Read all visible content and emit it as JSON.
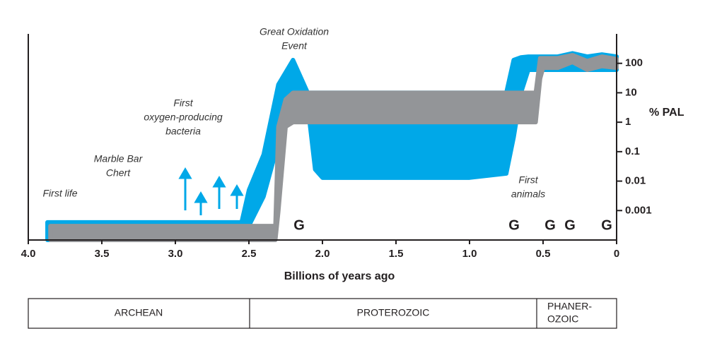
{
  "chart_data": {
    "type": "band",
    "xlabel": "Billions of years ago",
    "ylabel": "% PAL",
    "xlim": [
      4.0,
      0
    ],
    "ylim": [
      0.0001,
      1000
    ],
    "log_y": true,
    "xticks": [
      {
        "value": 4,
        "label": "4.0"
      },
      3.5,
      {
        "value": 3,
        "label": "3.0"
      },
      2.5,
      {
        "value": 2,
        "label": "2.0"
      },
      1.5,
      {
        "value": 1,
        "label": "1.0"
      },
      0.5,
      0
    ],
    "yticks": [
      0.001,
      0.01,
      0.1,
      1,
      10,
      100
    ],
    "series": [
      {
        "color": "#00a8e8",
        "x": [
          3.87,
          2.55,
          2.5,
          2.4,
          2.3,
          2.2,
          2.1,
          2.05,
          2.0,
          1.0,
          0.75,
          0.7,
          0.65,
          0.6,
          0.5,
          0.4,
          0.3,
          0.2,
          0.1,
          0
        ],
        "upper": [
          0.0004,
          0.0004,
          0.005,
          0.08,
          19,
          130,
          10,
          10,
          10,
          10,
          10,
          130,
          160,
          170,
          170,
          170,
          220,
          170,
          200,
          170
        ],
        "lower": [
          0.0001,
          0.0001,
          0.0003,
          0.003,
          0.2,
          10,
          3.5,
          0.025,
          0.013,
          0.013,
          0.018,
          0.3,
          10,
          60,
          60,
          60,
          60,
          60,
          60,
          60
        ]
      },
      {
        "color": "#939598",
        "x": [
          3.85,
          2.32,
          2.3,
          2.25,
          2.2,
          2.0,
          1.0,
          0.55,
          0.52,
          0.5,
          0.4,
          0.3,
          0.2,
          0.1,
          0
        ],
        "upper": [
          0.0003,
          0.0003,
          0.7,
          6,
          10,
          10,
          10,
          10,
          150,
          150,
          150,
          190,
          120,
          170,
          140
        ],
        "lower": [
          0.0001,
          0.0001,
          0.0009,
          0.7,
          1,
          1,
          1,
          1,
          30,
          70,
          70,
          110,
          60,
          80,
          70
        ]
      }
    ],
    "annotations": [
      [
        "First life"
      ],
      [
        "Marble Bar",
        "Chert"
      ],
      [
        "First",
        "oxygen-producing",
        "bacteria"
      ],
      [
        "Great Oxidation",
        "Event"
      ],
      [
        "First",
        "animals"
      ]
    ],
    "glaciations": [
      "G",
      "G",
      "G",
      "G",
      "G"
    ],
    "eons": [
      [
        "ARCHEAN"
      ],
      [
        "PROTEROZOIC"
      ],
      [
        "PHANER-",
        "OZOIC"
      ]
    ]
  }
}
